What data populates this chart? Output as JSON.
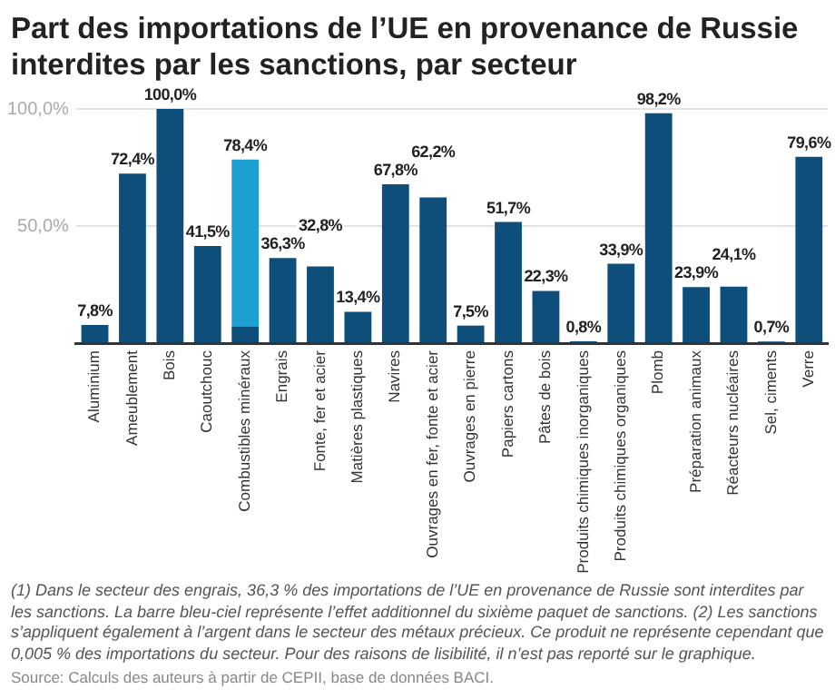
{
  "chart_data": {
    "type": "bar",
    "title": "Part des importations de l’UE en provenance de Russie interdites par les sanctions, par secteur",
    "categories": [
      "Aluminium",
      "Ameublement",
      "Bois",
      "Caoutchouc",
      "Combustibles minéraux",
      "Engrais",
      "Fonte, fer et acier",
      "Matières plastiques",
      "Navires",
      "Ouvrages en fer, fonte et acier",
      "Ouvrages en pierre",
      "Papiers cartons",
      "Pâtes de bois",
      "Produits chimiques inorganiques",
      "Produits chimiques organiques",
      "Plomb",
      "Préparation animaux",
      "Réacteurs nucléaires",
      "Sel, ciments",
      "Verre"
    ],
    "stacked": true,
    "series": [
      {
        "color": "#0d4f7a",
        "values": [
          7.8,
          72.4,
          100.0,
          41.5,
          7,
          36.3,
          32.8,
          13.4,
          67.8,
          62.2,
          7.5,
          51.7,
          22.3,
          0.8,
          33.9,
          98.2,
          23.9,
          24.1,
          0.7,
          79.6
        ],
        "value_labels": [
          "7,8%",
          "72,4%",
          "100,0%",
          "41,5%",
          null,
          "36,3%",
          "32,8%",
          "13,4%",
          "67,8%",
          "62,2%",
          "7,5%",
          "51,7%",
          "22,3%",
          "0,8%",
          "33,9%",
          "98,2%",
          "23,9%",
          "24,1%",
          "0,7%",
          "79,6%"
        ]
      },
      {
        "color": "#1fa0d2",
        "values": [
          null,
          null,
          null,
          null,
          71.4,
          null,
          null,
          null,
          null,
          null,
          null,
          null,
          null,
          null,
          null,
          null,
          null,
          null,
          null,
          null
        ]
      }
    ],
    "totals": [
      null,
      null,
      null,
      null,
      "78,4%",
      null,
      null,
      null,
      null,
      null,
      null,
      null,
      null,
      null,
      null,
      null,
      null,
      null,
      null,
      null
    ],
    "ylim": [
      0,
      100
    ],
    "yticks": [
      {
        "value": 0,
        "label": null
      },
      {
        "value": 50,
        "label": "50,0%"
      },
      {
        "value": 100,
        "label": "100,0%"
      }
    ],
    "grid": "y",
    "legend": false,
    "annotations": [
      "(1) Dans le secteur des engrais, 36,3 % des importations de l’UE en provenance de Russie sont interdites par les sanctions. La barre bleu-ciel représente l’effet additionnel du sixième paquet de sanctions. (2) Les sanctions s’appliquent également à l’argent dans le secteur des métaux précieux. Ce produit ne représente cependant que 0,005 % des importations du secteur. Pour des raisons de lisibilité, il n’est pas reporté sur le graphique.",
      "Source: Calculs des auteurs à partir de CEPII, base de données BACI."
    ]
  }
}
